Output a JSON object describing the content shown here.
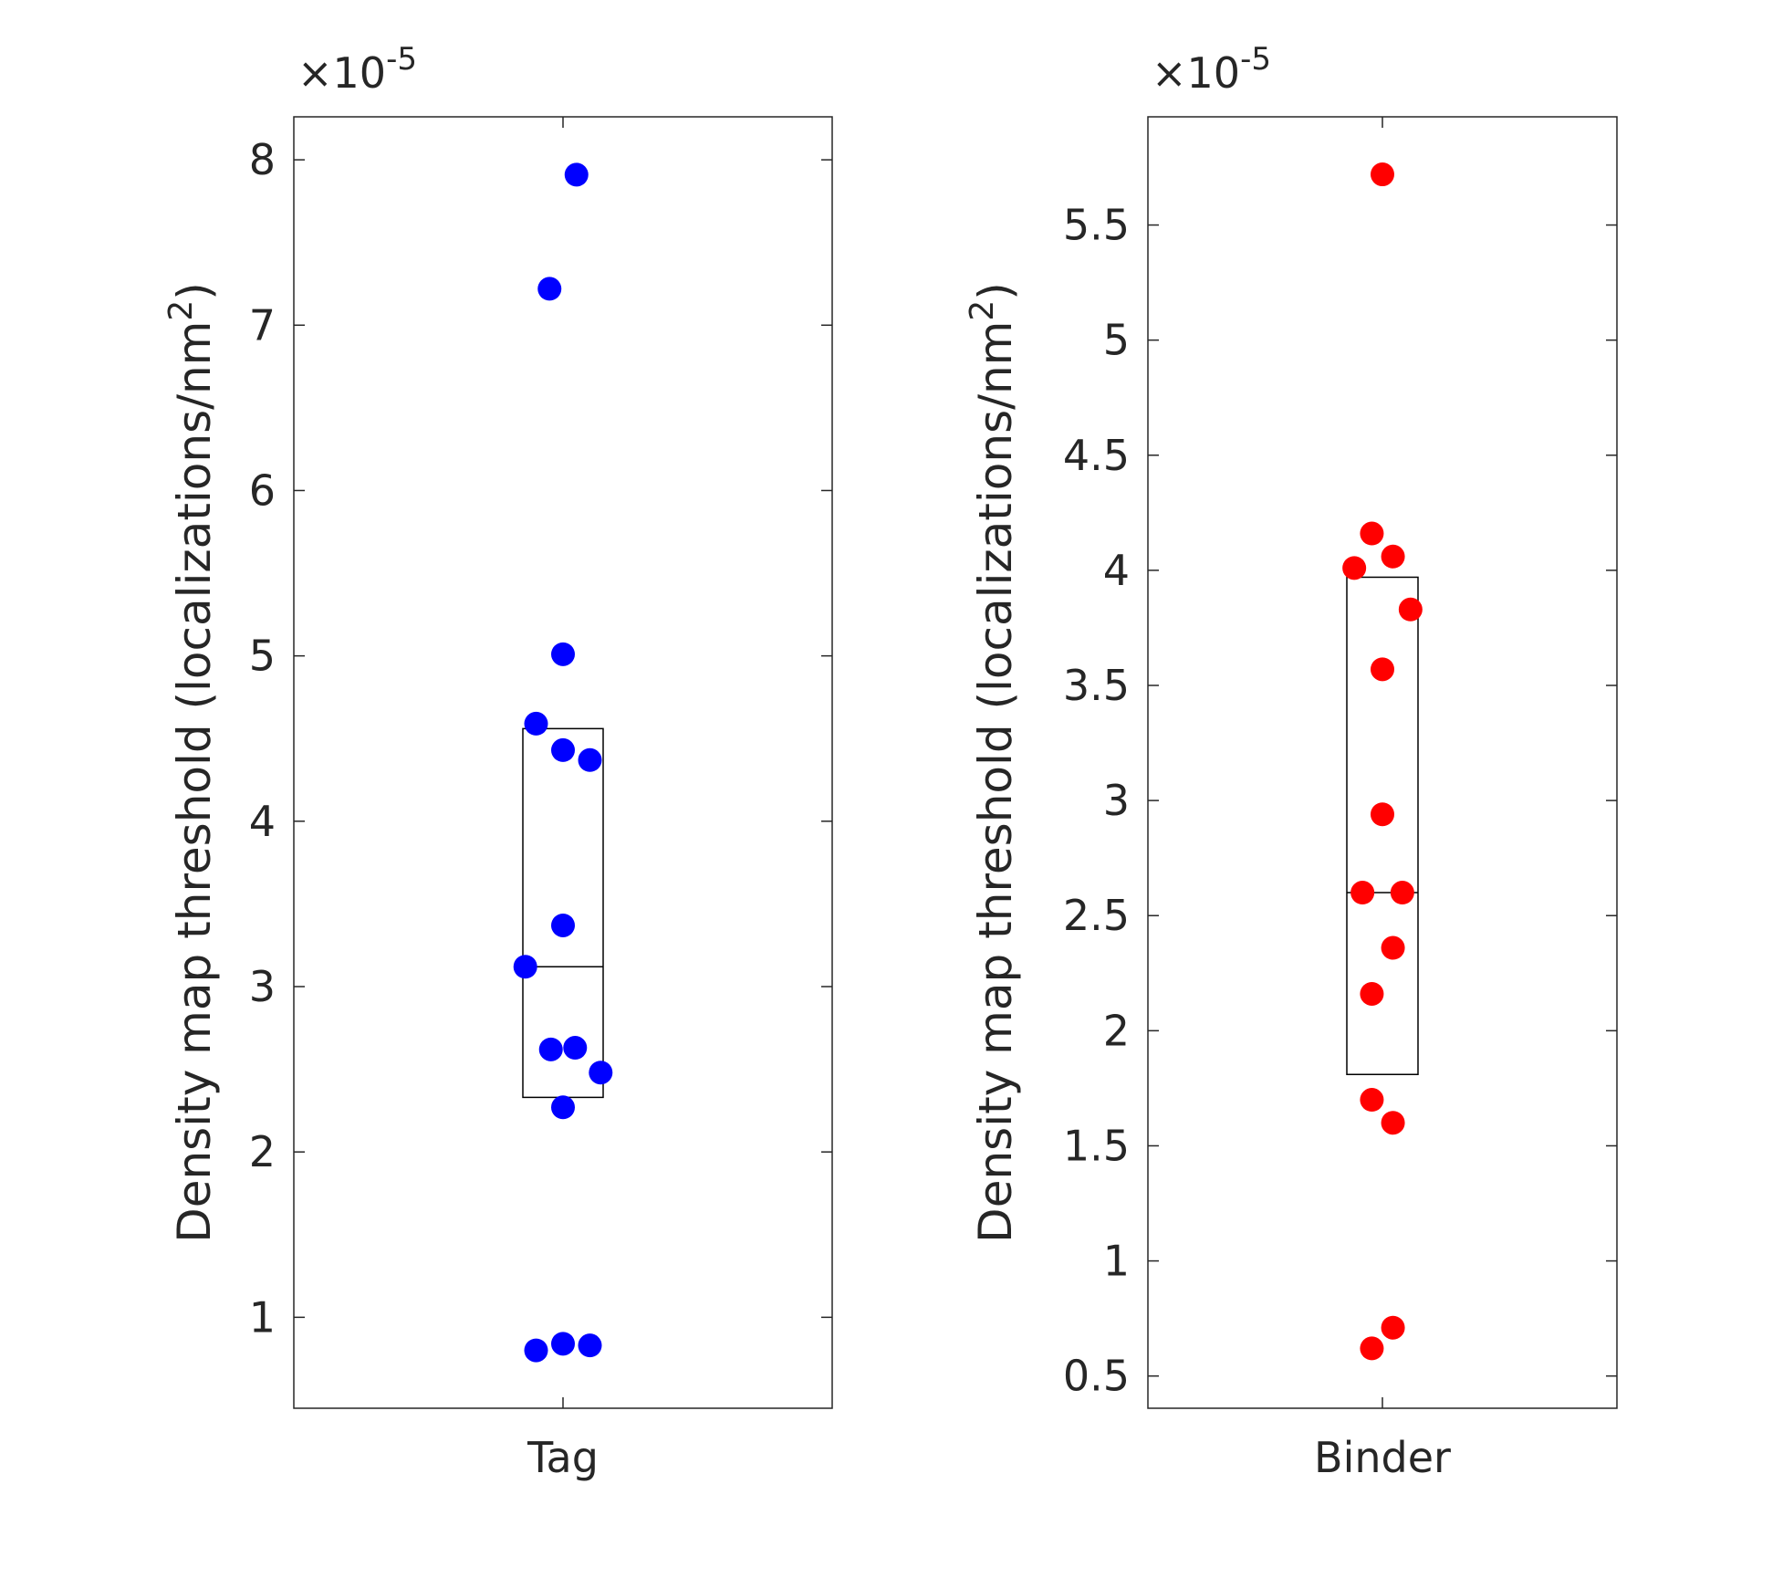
{
  "chart_data": [
    {
      "type": "scatter",
      "title": "",
      "xlabel": "",
      "ylabel": "Density map threshold (localizations/nm",
      "ylabel_sup": "2",
      "ylabel_end": ")",
      "y_multiplier": "×10",
      "y_multiplier_exp": "-5",
      "categories": [
        "Tag"
      ],
      "ylim": [
        0.45,
        8.26
      ],
      "yticks": [
        1,
        2,
        3,
        4,
        5,
        6,
        7,
        8
      ],
      "ytick_labels": [
        "1",
        "2",
        "3",
        "4",
        "5",
        "6",
        "7",
        "8"
      ],
      "marker_color": "#0000ff",
      "series": [
        {
          "category": "Tag",
          "points": [
            {
              "offset": 0.05,
              "y": 7.91
            },
            {
              "offset": -0.05,
              "y": 7.22
            },
            {
              "offset": 0.0,
              "y": 5.01
            },
            {
              "offset": -0.1,
              "y": 4.59
            },
            {
              "offset": 0.0,
              "y": 4.43
            },
            {
              "offset": 0.1,
              "y": 4.37
            },
            {
              "offset": 0.0,
              "y": 3.37
            },
            {
              "offset": -0.14,
              "y": 3.12
            },
            {
              "offset": -0.045,
              "y": 2.62
            },
            {
              "offset": 0.045,
              "y": 2.63
            },
            {
              "offset": 0.14,
              "y": 2.48
            },
            {
              "offset": 0.0,
              "y": 2.27
            },
            {
              "offset": -0.1,
              "y": 0.8
            },
            {
              "offset": 0.0,
              "y": 0.84
            },
            {
              "offset": 0.1,
              "y": 0.83
            }
          ]
        }
      ],
      "box": {
        "q1": 2.33,
        "median": 3.12,
        "q3": 4.56
      }
    },
    {
      "type": "scatter",
      "title": "",
      "xlabel": "",
      "ylabel": "Density map threshold (localizations/nm",
      "ylabel_sup": "2",
      "ylabel_end": ")",
      "y_multiplier": "×10",
      "y_multiplier_exp": "-5",
      "categories": [
        "Binder"
      ],
      "ylim": [
        0.36,
        5.97
      ],
      "yticks": [
        0.5,
        1,
        1.5,
        2,
        2.5,
        3,
        3.5,
        4,
        4.5,
        5,
        5.5
      ],
      "ytick_labels": [
        "0.5",
        "1",
        "1.5",
        "2",
        "2.5",
        "3",
        "3.5",
        "4",
        "4.5",
        "5",
        "5.5"
      ],
      "marker_color": "#ff0000",
      "series": [
        {
          "category": "Binder",
          "points": [
            {
              "offset": 0.0,
              "y": 5.72
            },
            {
              "offset": -0.045,
              "y": 4.16
            },
            {
              "offset": -0.12,
              "y": 4.01
            },
            {
              "offset": 0.045,
              "y": 4.06
            },
            {
              "offset": 0.12,
              "y": 3.83
            },
            {
              "offset": 0.0,
              "y": 3.57
            },
            {
              "offset": 0.0,
              "y": 2.94
            },
            {
              "offset": -0.085,
              "y": 2.6
            },
            {
              "offset": 0.085,
              "y": 2.6
            },
            {
              "offset": 0.045,
              "y": 2.36
            },
            {
              "offset": -0.045,
              "y": 2.16
            },
            {
              "offset": -0.045,
              "y": 1.7
            },
            {
              "offset": 0.045,
              "y": 1.6
            },
            {
              "offset": -0.045,
              "y": 0.62
            },
            {
              "offset": 0.045,
              "y": 0.71
            }
          ]
        }
      ],
      "box": {
        "q1": 1.81,
        "median": 2.6,
        "q3": 3.97
      }
    }
  ]
}
